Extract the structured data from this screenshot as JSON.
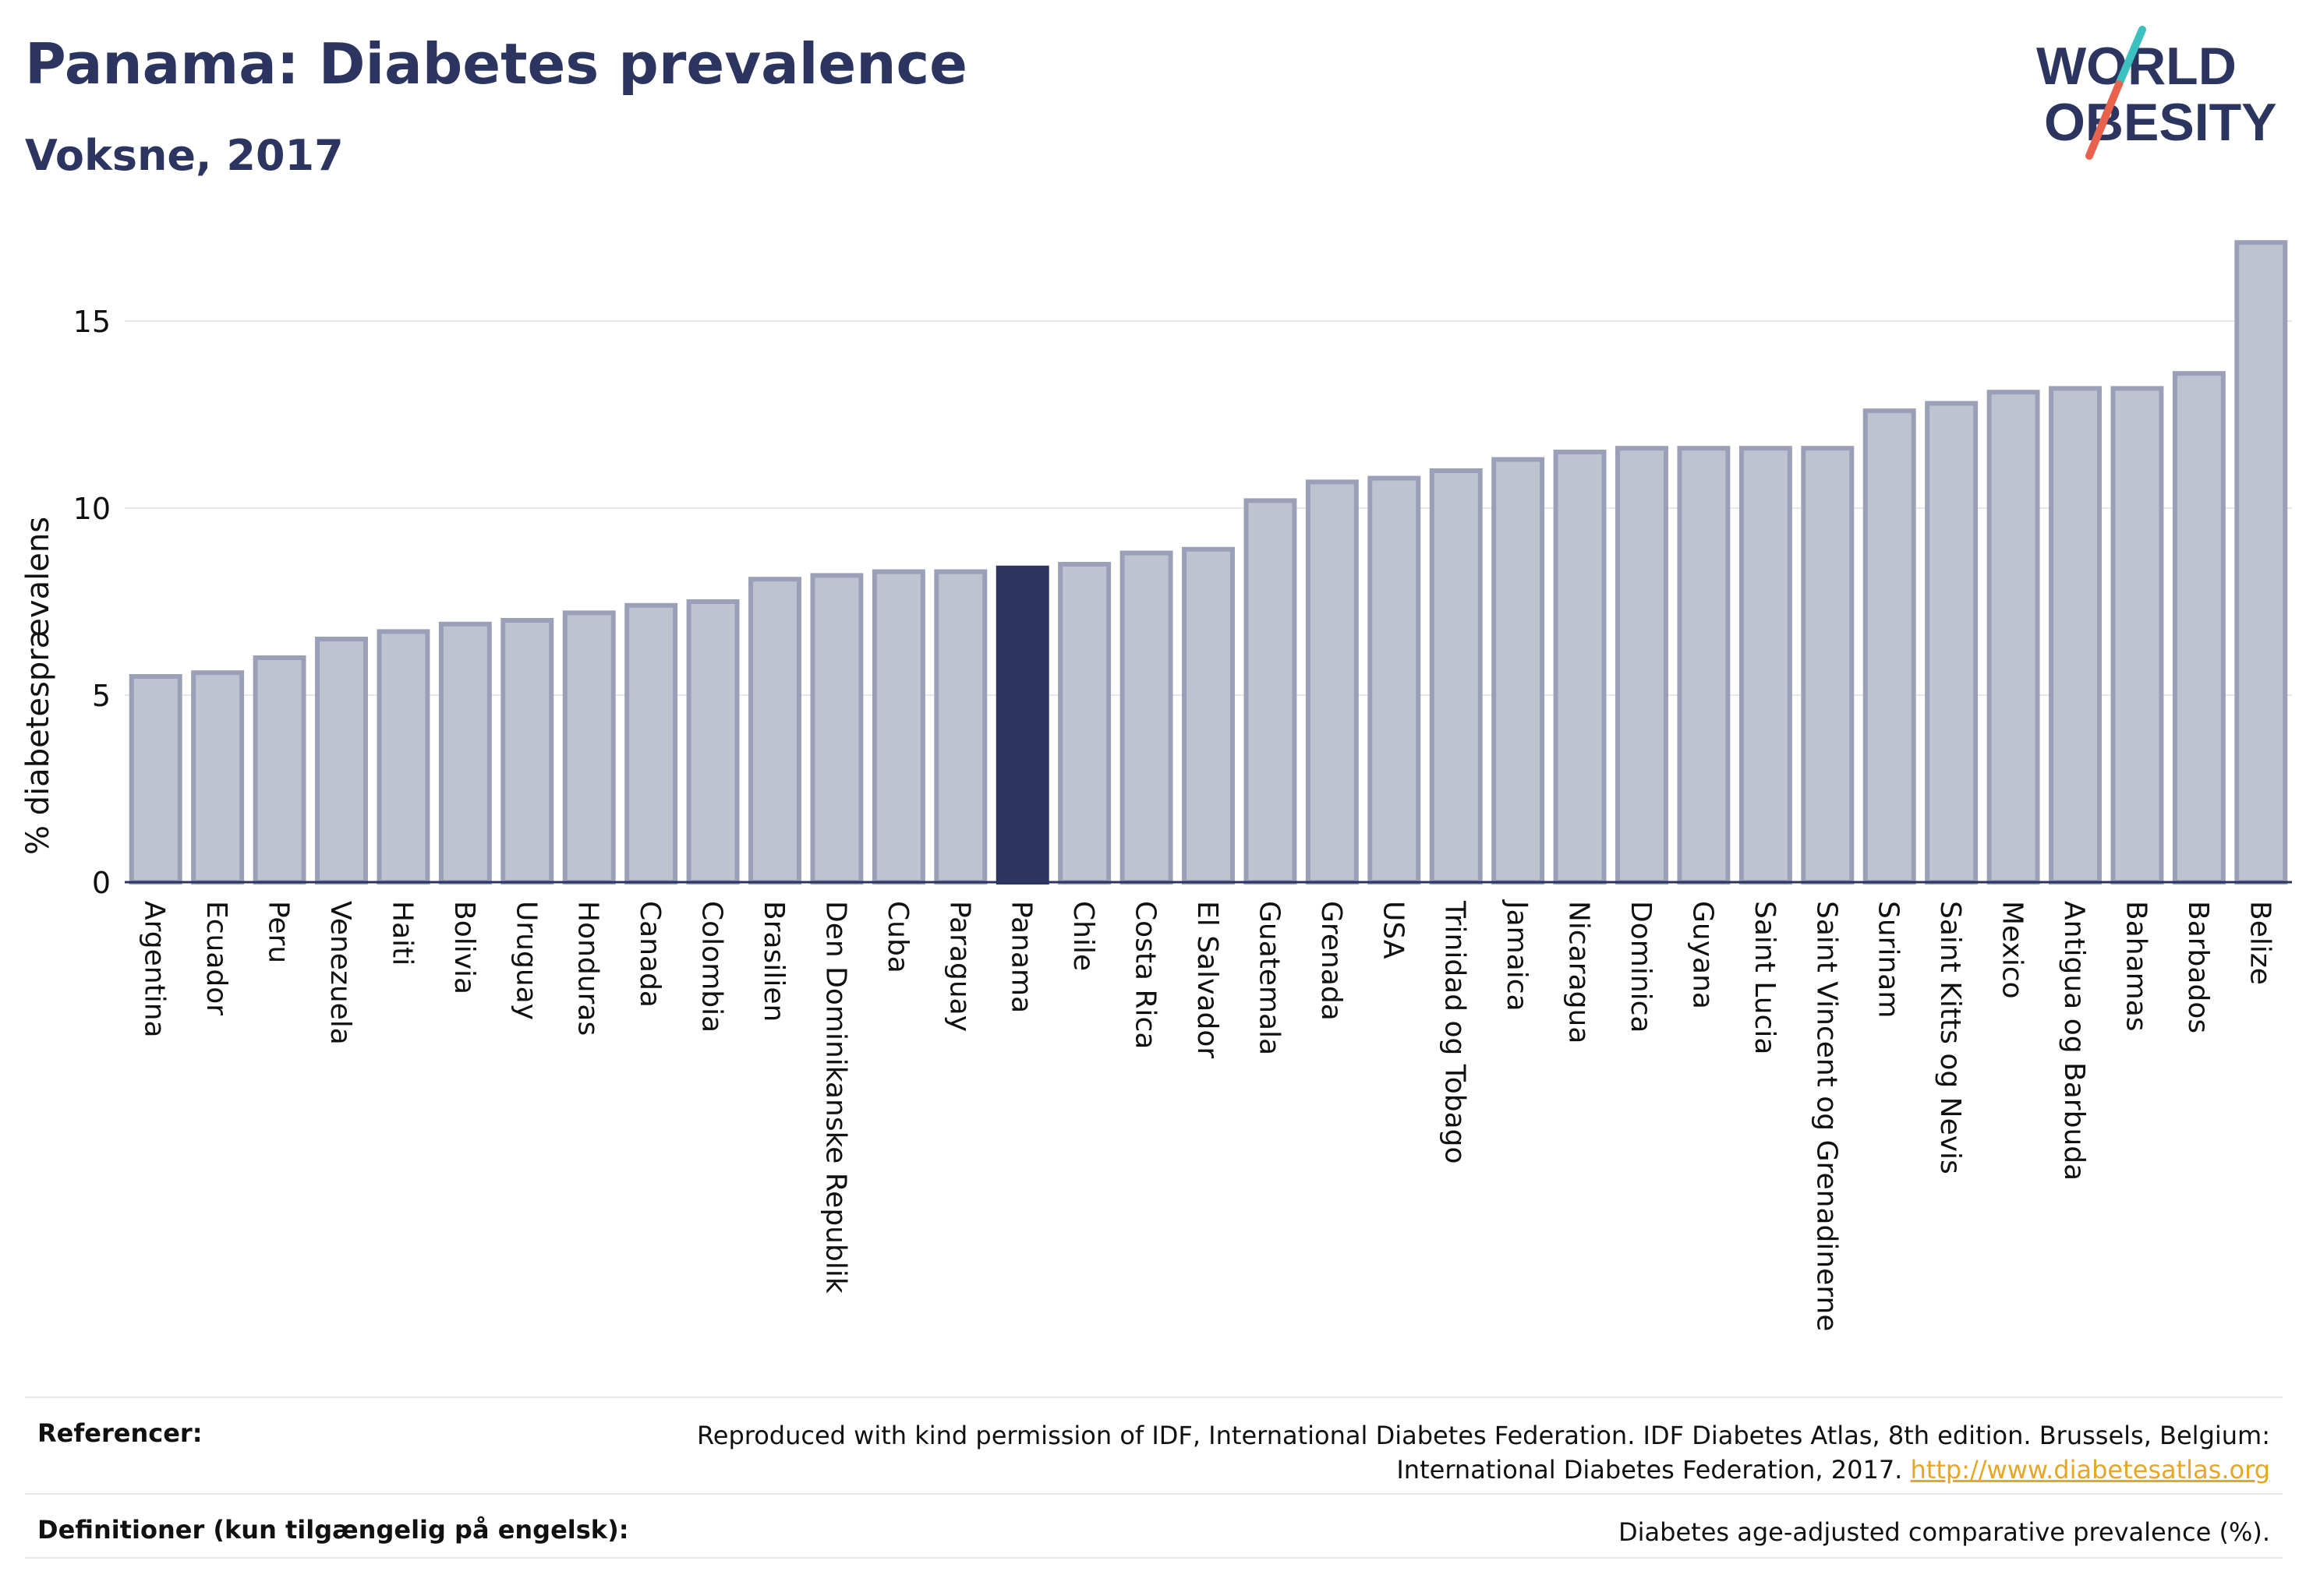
{
  "header": {
    "title": "Panama: Diabetes prevalence",
    "subtitle": "Voksne, 2017"
  },
  "logo": {
    "line1": "WORLD",
    "line2": "OBESITY"
  },
  "chart_data": {
    "type": "bar",
    "ylabel": "% diabetesprævalens",
    "xlabel": "",
    "ylim": [
      0,
      17.5
    ],
    "yticks": [
      0,
      5,
      10,
      15
    ],
    "grid": true,
    "highlight": "Panama",
    "colors": {
      "bar": "#bfc2cf",
      "bar_border": "#9aa0b8",
      "highlight": "#2b3560"
    },
    "categories": [
      "Argentina",
      "Ecuador",
      "Peru",
      "Venezuela",
      "Haiti",
      "Bolivia",
      "Uruguay",
      "Honduras",
      "Canada",
      "Colombia",
      "Brasilien",
      "Den Dominikanske Republik",
      "Cuba",
      "Paraguay",
      "Panama",
      "Chile",
      "Costa Rica",
      "El Salvador",
      "Guatemala",
      "Grenada",
      "USA",
      "Trinidad og Tobago",
      "Jamaica",
      "Nicaragua",
      "Dominica",
      "Guyana",
      "Saint Lucia",
      "Saint Vincent og Grenadinerne",
      "Surinam",
      "Saint Kitts og Nevis",
      "Mexico",
      "Antigua og Barbuda",
      "Bahamas",
      "Barbados",
      "Belize"
    ],
    "values": [
      5.5,
      5.6,
      6.0,
      6.5,
      6.7,
      6.9,
      7.0,
      7.2,
      7.4,
      7.5,
      8.1,
      8.2,
      8.3,
      8.3,
      8.4,
      8.5,
      8.8,
      8.9,
      10.2,
      10.7,
      10.8,
      11.0,
      11.3,
      11.5,
      11.6,
      11.6,
      11.6,
      11.6,
      12.6,
      12.8,
      13.1,
      13.2,
      13.2,
      13.6,
      17.1
    ]
  },
  "footer": {
    "references_label": "Referencer:",
    "references_text": "Reproduced with kind permission of IDF, International Diabetes Federation. IDF Diabetes Atlas, 8th edition. Brussels, Belgium: International Diabetes Federation, 2017.",
    "references_link": "http://www.diabetesatlas.org",
    "definitions_label": "Definitioner (kun tilgængelig på engelsk):",
    "definitions_text": "Diabetes age-adjusted comparative prevalence (%)."
  }
}
